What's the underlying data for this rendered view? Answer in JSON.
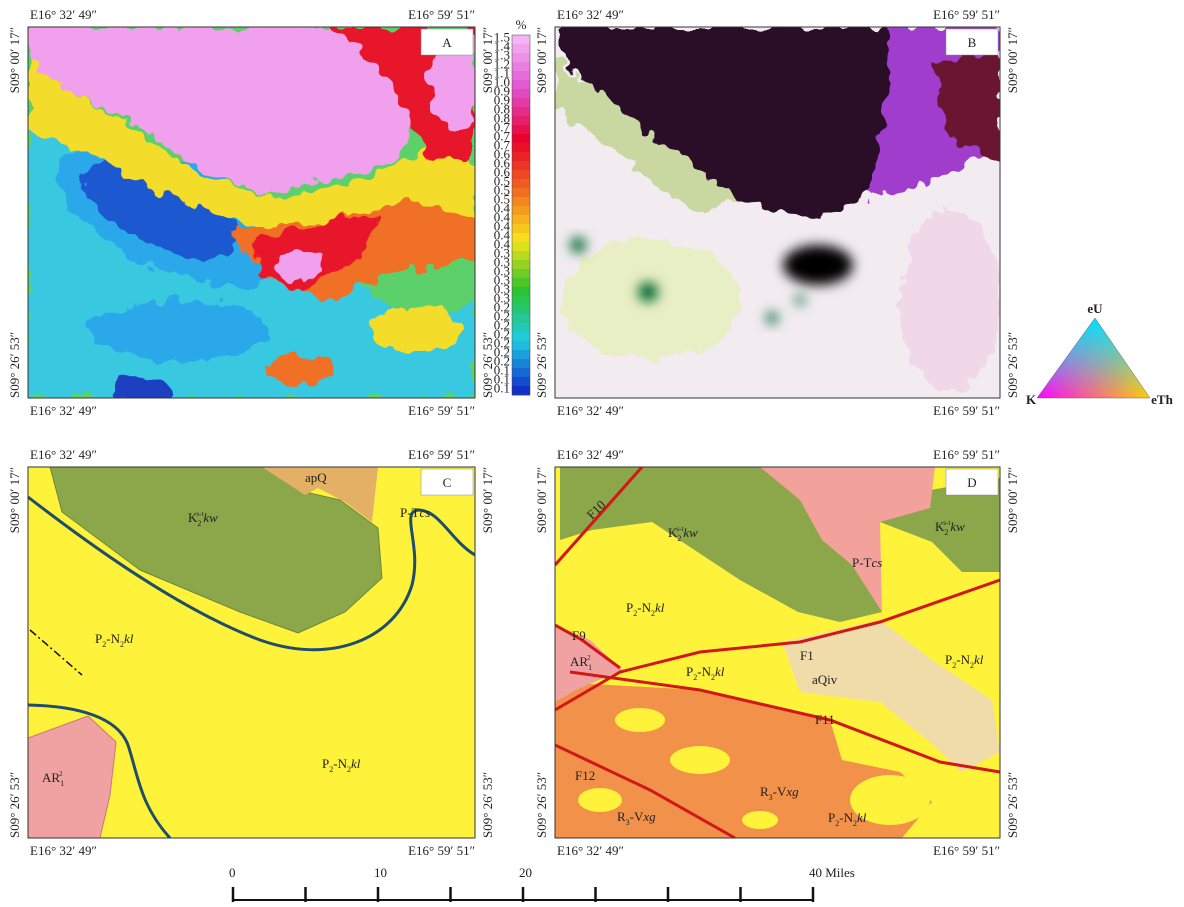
{
  "coordinates": {
    "lon_west": "E16° 32′ 49″",
    "lon_east": "E16° 59′ 51″",
    "lat_north": "S09° 00′ 17″",
    "lat_south": "S09° 26′ 53″"
  },
  "panels": [
    {
      "letter": "A"
    },
    {
      "letter": "B"
    },
    {
      "letter": "C",
      "labels": [
        {
          "parts": [
            {
              "text": "apQ",
              "style": "normal"
            }
          ]
        },
        {
          "parts": [
            {
              "text": "K",
              "style": "normal"
            },
            {
              "text": "2",
              "style": "sub"
            },
            {
              "text": "s-t",
              "style": "sup"
            },
            {
              "text": "kw",
              "style": "italic"
            }
          ]
        },
        {
          "parts": [
            {
              "text": "P-T",
              "style": "normal"
            },
            {
              "text": "cs",
              "style": "italic"
            }
          ]
        },
        {
          "parts": [
            {
              "text": "P",
              "style": "normal"
            },
            {
              "text": "2",
              "style": "sub"
            },
            {
              "text": "-N",
              "style": "normal"
            },
            {
              "text": "2",
              "style": "sub"
            },
            {
              "text": "kl",
              "style": "italic"
            }
          ]
        },
        {
          "parts": [
            {
              "text": "P",
              "style": "normal"
            },
            {
              "text": "2",
              "style": "sub"
            },
            {
              "text": "-N",
              "style": "normal"
            },
            {
              "text": "2",
              "style": "sub"
            },
            {
              "text": "kl",
              "style": "italic"
            }
          ]
        },
        {
          "parts": [
            {
              "text": "AR",
              "style": "normal"
            },
            {
              "text": "1",
              "style": "sub"
            },
            {
              "text": "2",
              "style": "sup"
            }
          ]
        }
      ]
    },
    {
      "letter": "D",
      "labels": [
        {
          "parts": [
            {
              "text": "F10",
              "style": "normal"
            }
          ]
        },
        {
          "parts": [
            {
              "text": "K",
              "style": "normal"
            },
            {
              "text": "2",
              "style": "sub"
            },
            {
              "text": "s-t",
              "style": "sup"
            },
            {
              "text": "kw",
              "style": "italic"
            }
          ]
        },
        {
          "parts": [
            {
              "text": "P-T",
              "style": "normal"
            },
            {
              "text": "cs",
              "style": "italic"
            }
          ]
        },
        {
          "parts": [
            {
              "text": "K",
              "style": "normal"
            },
            {
              "text": "2",
              "style": "sub"
            },
            {
              "text": "s-t",
              "style": "sup"
            },
            {
              "text": "kw",
              "style": "italic"
            }
          ]
        },
        {
          "parts": [
            {
              "text": "P",
              "style": "normal"
            },
            {
              "text": "2",
              "style": "sub"
            },
            {
              "text": "-N",
              "style": "normal"
            },
            {
              "text": "2",
              "style": "sub"
            },
            {
              "text": "kl",
              "style": "italic"
            }
          ]
        },
        {
          "parts": [
            {
              "text": "F9",
              "style": "normal"
            }
          ]
        },
        {
          "parts": [
            {
              "text": "F1",
              "style": "normal"
            }
          ]
        },
        {
          "parts": [
            {
              "text": "aQiv",
              "style": "normal"
            }
          ]
        },
        {
          "parts": [
            {
              "text": "P",
              "style": "normal"
            },
            {
              "text": "2",
              "style": "sub"
            },
            {
              "text": "-N",
              "style": "normal"
            },
            {
              "text": "2",
              "style": "sub"
            },
            {
              "text": "kl",
              "style": "italic"
            }
          ]
        },
        {
          "parts": [
            {
              "text": "AR",
              "style": "normal"
            },
            {
              "text": "1",
              "style": "sub"
            },
            {
              "text": "2",
              "style": "sup"
            }
          ]
        },
        {
          "parts": [
            {
              "text": "P",
              "style": "normal"
            },
            {
              "text": "2",
              "style": "sub"
            },
            {
              "text": "-N",
              "style": "normal"
            },
            {
              "text": "2",
              "style": "sub"
            },
            {
              "text": "kl",
              "style": "italic"
            }
          ]
        },
        {
          "parts": [
            {
              "text": "F11",
              "style": "normal"
            }
          ]
        },
        {
          "parts": [
            {
              "text": "F12",
              "style": "normal"
            }
          ]
        },
        {
          "parts": [
            {
              "text": "R",
              "style": "normal"
            },
            {
              "text": "3",
              "style": "sub"
            },
            {
              "text": "-V",
              "style": "normal"
            },
            {
              "text": "xg",
              "style": "italic"
            }
          ]
        },
        {
          "parts": [
            {
              "text": "R",
              "style": "normal"
            },
            {
              "text": "3",
              "style": "sub"
            },
            {
              "text": "-V",
              "style": "normal"
            },
            {
              "text": "xg",
              "style": "italic"
            }
          ]
        },
        {
          "parts": [
            {
              "text": "P",
              "style": "normal"
            },
            {
              "text": "2",
              "style": "sub"
            },
            {
              "text": "-N",
              "style": "normal"
            },
            {
              "text": "2",
              "style": "sub"
            },
            {
              "text": "kl",
              "style": "italic"
            }
          ]
        }
      ]
    }
  ],
  "colorbar": {
    "unit": "%",
    "colors": [
      "#f4b4f4",
      "#e050d0",
      "#e8002a",
      "#f06a20",
      "#f8e41a",
      "#2cc22c",
      "#20cce4",
      "#1030c8"
    ],
    "ticks": [
      "1.5",
      "1.4",
      "1.3",
      "1.2",
      "1.1",
      "1.0",
      "0.9",
      "0.9",
      "0.8",
      "0.8",
      "0.7",
      "0.7",
      "0.7",
      "0.6",
      "0.6",
      "0.6",
      "0.5",
      "0.5",
      "0.5",
      "0.4",
      "0.4",
      "0.4",
      "0.4",
      "0.4",
      "0.3",
      "0.3",
      "0.3",
      "0.3",
      "0.3",
      "0.3",
      "0.2",
      "0.2",
      "0.2",
      "0.2",
      "0.2",
      "0.2",
      "0.2",
      "0.1",
      "0.1",
      "0.1"
    ]
  },
  "ternary": {
    "top": "eU",
    "left": "K",
    "right": "eTh"
  },
  "scale_bar": {
    "ticks": [
      0,
      5,
      10,
      15,
      20,
      25,
      30,
      35,
      40
    ],
    "labels": [
      0,
      10,
      20,
      {
        "value": 40,
        "label": "40 Miles"
      }
    ]
  }
}
